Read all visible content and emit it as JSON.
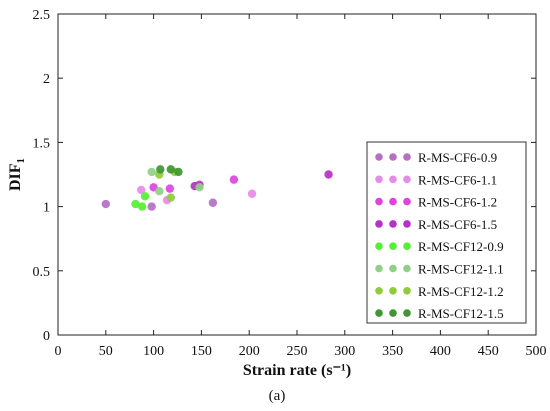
{
  "chart_data": {
    "type": "scatter",
    "xlabel": "Strain rate (s⁻¹)",
    "ylabel_main": "DIF",
    "ylabel_sub": "1",
    "caption": "(a)",
    "xlim": [
      0,
      500
    ],
    "ylim": [
      0,
      2.5
    ],
    "x_ticks": [
      "0",
      "50",
      "100",
      "150",
      "200",
      "250",
      "300",
      "350",
      "400",
      "450",
      "500"
    ],
    "y_ticks": [
      "0",
      "0.5",
      "1",
      "1.5",
      "2",
      "2.5"
    ],
    "grid": false,
    "legend_position": "right",
    "series": [
      {
        "name": "R-MS-CF6-0.9",
        "color": "#b370c4",
        "points": [
          [
            50,
            1.02
          ],
          [
            98,
            1.0
          ],
          [
            162,
            1.03
          ]
        ]
      },
      {
        "name": "R-MS-CF6-1.1",
        "color": "#e58be8",
        "points": [
          [
            87,
            1.13
          ],
          [
            114,
            1.05
          ],
          [
            203,
            1.1
          ]
        ]
      },
      {
        "name": "R-MS-CF6-1.2",
        "color": "#dd44de",
        "points": [
          [
            100,
            1.15
          ],
          [
            117,
            1.14
          ],
          [
            184,
            1.21
          ]
        ]
      },
      {
        "name": "R-MS-CF6-1.5",
        "color": "#b531c7",
        "points": [
          [
            143,
            1.16
          ],
          [
            148,
            1.17
          ],
          [
            283,
            1.25
          ]
        ]
      },
      {
        "name": "R-MS-CF12-0.9",
        "color": "#57ef32",
        "points": [
          [
            81,
            1.02
          ],
          [
            88,
            1.0
          ],
          [
            91,
            1.08
          ]
        ]
      },
      {
        "name": "R-MS-CF12-1.1",
        "color": "#8fcf86",
        "points": [
          [
            98,
            1.27
          ],
          [
            106,
            1.12
          ],
          [
            148,
            1.15
          ]
        ]
      },
      {
        "name": "R-MS-CF12-1.2",
        "color": "#8fcc3a",
        "points": [
          [
            106,
            1.25
          ],
          [
            118,
            1.07
          ],
          [
            122,
            1.27
          ]
        ]
      },
      {
        "name": "R-MS-CF12-1.5",
        "color": "#3f9632",
        "points": [
          [
            107,
            1.29
          ],
          [
            118,
            1.29
          ],
          [
            126,
            1.27
          ]
        ]
      }
    ]
  }
}
